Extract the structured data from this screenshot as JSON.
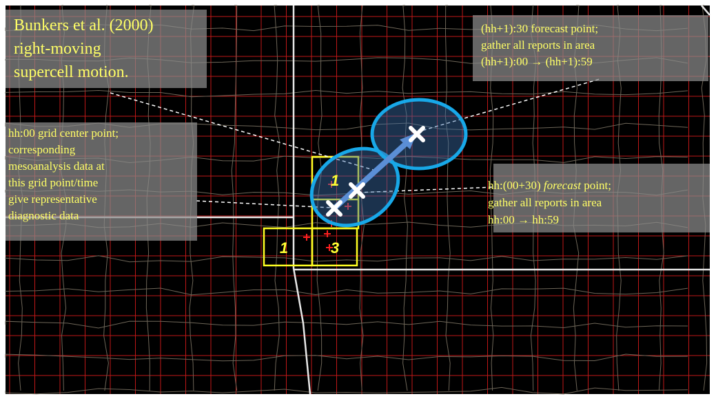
{
  "annotations": {
    "title": {
      "lines": [
        "Bunkers et al. (2000)",
        "right-moving",
        "supercell motion."
      ]
    },
    "forecast_next": {
      "lines": [
        "(hh+1):30 forecast point;",
        "gather all reports in area",
        "(hh+1):00 → (hh+1):59"
      ]
    },
    "grid_center": {
      "lines": [
        "hh:00 grid center point;",
        "corresponding",
        "mesoanalysis data at",
        "this grid point/time",
        "give representative",
        "diagnostic data"
      ]
    },
    "forecast_now": {
      "first_line": [
        "hh:(00+30) ",
        "forecast",
        " point;"
      ],
      "lines": [
        "gather all reports in area",
        "hh:00 → hh:59"
      ]
    }
  },
  "grid_labels": [
    "1",
    "1",
    "3"
  ]
}
